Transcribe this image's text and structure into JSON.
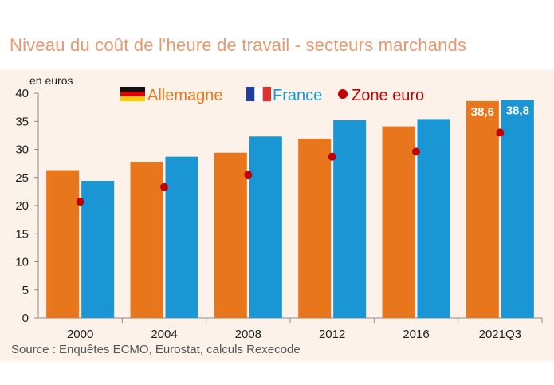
{
  "title": "Niveau du coût de l'heure de travail - secteurs marchands",
  "source": "Source :  Enquêtes ECMO, Eurostat, calculs Rexecode",
  "colors": {
    "allemagne": "#e8761c",
    "france": "#1996d3",
    "zone_euro": "#c00000",
    "background": "#fdf2e9",
    "title": "#e8986f"
  },
  "chart_data": {
    "type": "bar",
    "ylabel": "en euros",
    "xlabel": "",
    "ylim": [
      0,
      40
    ],
    "yticks": [
      0,
      5,
      10,
      15,
      20,
      25,
      30,
      35,
      40
    ],
    "grid": false,
    "legend": "top",
    "categories": [
      "2000",
      "2004",
      "2008",
      "2012",
      "2016",
      "2021Q3"
    ],
    "series": [
      {
        "name": "Allemagne",
        "kind": "bar",
        "flag": "germany-flag-icon",
        "values": [
          26.3,
          27.8,
          29.4,
          31.9,
          34.1,
          38.6
        ]
      },
      {
        "name": "France",
        "kind": "bar",
        "flag": "france-flag-icon",
        "values": [
          24.4,
          28.7,
          32.3,
          35.2,
          35.4,
          38.8
        ]
      },
      {
        "name": "Zone euro",
        "kind": "marker",
        "values": [
          20.7,
          23.3,
          25.5,
          28.7,
          29.6,
          33.0
        ]
      }
    ],
    "data_labels": [
      {
        "series": "Allemagne",
        "category": "2021Q3",
        "text": "38,6"
      },
      {
        "series": "France",
        "category": "2021Q3",
        "text": "38,8"
      }
    ]
  }
}
